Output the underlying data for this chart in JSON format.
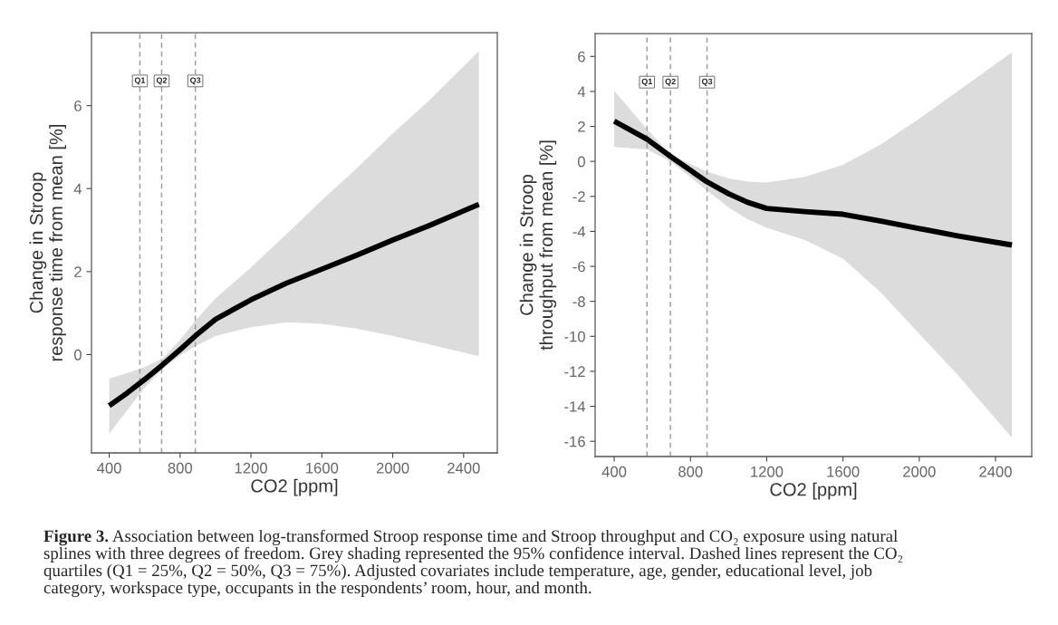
{
  "chart_data": [
    {
      "type": "line",
      "xlabel": "CO2 [ppm]",
      "ylabel": "Change in Stroop\nresponse time from mean [%]",
      "xlim": [
        300,
        2590
      ],
      "xticks": [
        400,
        800,
        1200,
        1600,
        2000,
        2400
      ],
      "ylim": [
        -2.37,
        7.76
      ],
      "yticks": [
        0,
        2,
        4,
        6
      ],
      "grid": false,
      "series": [
        {
          "color": "#000000",
          "x": [
            400,
            500,
            600,
            700,
            800,
            886,
            1000,
            1200,
            1400,
            1600,
            1800,
            2000,
            2200,
            2486
          ],
          "values": [
            -1.23,
            -0.93,
            -0.6,
            -0.25,
            0.12,
            0.45,
            0.85,
            1.32,
            1.72,
            2.06,
            2.4,
            2.76,
            3.1,
            3.62
          ],
          "lower": [
            -1.91,
            -1.35,
            -0.8,
            -0.35,
            -0.02,
            0.2,
            0.45,
            0.66,
            0.78,
            0.74,
            0.62,
            0.45,
            0.25,
            -0.04
          ],
          "upper": [
            -0.58,
            -0.45,
            -0.3,
            -0.1,
            0.35,
            0.82,
            1.35,
            2.1,
            2.9,
            3.72,
            4.5,
            5.33,
            6.1,
            7.31
          ]
        }
      ],
      "ref_lines": [
        {
          "axis": "x",
          "value": 573,
          "label": "Q1",
          "color": "#999999",
          "line_style": "dashed"
        },
        {
          "axis": "x",
          "value": 696,
          "label": "Q2",
          "color": "#999999",
          "line_style": "dashed"
        },
        {
          "axis": "x",
          "value": 886,
          "label": "Q3",
          "color": "#999999",
          "line_style": "dashed"
        }
      ]
    },
    {
      "type": "line",
      "xlabel": "CO2 [ppm]",
      "ylabel": "Change in Stroop\nthroughput from mean [%]",
      "xlim": [
        300,
        2590
      ],
      "xticks": [
        400,
        800,
        1200,
        1600,
        2000,
        2400
      ],
      "ylim": [
        -16.87,
        7.31
      ],
      "yticks": [
        -16,
        -14,
        -12,
        -10,
        -8,
        -6,
        -4,
        -2,
        0,
        2,
        4,
        6
      ],
      "grid": false,
      "series": [
        {
          "color": "#000000",
          "x": [
            400,
            572,
            695,
            887,
            1000,
            1100,
            1200,
            1400,
            1600,
            1800,
            2000,
            2200,
            2486
          ],
          "values": [
            2.3,
            1.27,
            0.29,
            -1.17,
            -1.85,
            -2.34,
            -2.69,
            -2.87,
            -3.02,
            -3.41,
            -3.84,
            -4.25,
            -4.78
          ],
          "lower": [
            0.82,
            0.68,
            0.0,
            -1.66,
            -2.63,
            -3.3,
            -3.8,
            -4.49,
            -5.56,
            -7.51,
            -9.85,
            -12.19,
            -15.8
          ],
          "upper": [
            4.04,
            1.85,
            0.39,
            -0.59,
            -0.98,
            -1.15,
            -1.21,
            -0.88,
            -0.2,
            0.98,
            2.44,
            4.0,
            6.24
          ]
        }
      ],
      "ref_lines": [
        {
          "axis": "x",
          "value": 572,
          "label": "Q1",
          "color": "#999999",
          "line_style": "dashed"
        },
        {
          "axis": "x",
          "value": 695,
          "label": "Q2",
          "color": "#999999",
          "line_style": "dashed"
        },
        {
          "axis": "x",
          "value": 887,
          "label": "Q3",
          "color": "#999999",
          "line_style": "dashed"
        }
      ],
      "annotations": [
        "Figure 3.",
        "Association between log-transformed Stroop response time and Stroop throughput and CO₂ exposure using natural",
        "splines with three degrees of freedom. Grey shading represented the 95% confidence interval. Dashed lines represent the CO₂",
        "quartiles (Q1 = 25%, Q2 = 50%, Q3 = 75%). Adjusted covariates include temperature, age, gender, educational level, job",
        "category, workspace type, occupants in the respondents’ room, hour, and month."
      ]
    }
  ]
}
